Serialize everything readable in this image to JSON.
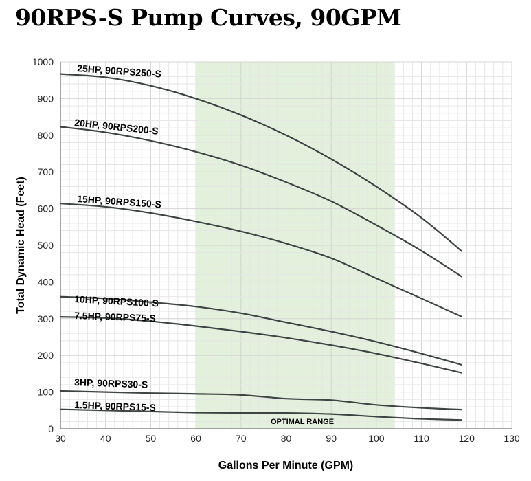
{
  "chart_data": {
    "type": "line",
    "title": "90RPS-S Pump Curves, 90GPM",
    "xlabel": "Gallons Per Minute (GPM)",
    "ylabel": "Total Dynamic Head (Feet)",
    "xlim": [
      30,
      130
    ],
    "ylim": [
      0,
      1000
    ],
    "xticks": [
      30,
      40,
      50,
      60,
      70,
      80,
      90,
      100,
      110,
      120,
      130
    ],
    "yticks": [
      0,
      100,
      200,
      300,
      400,
      500,
      600,
      700,
      800,
      900,
      1000
    ],
    "grid": true,
    "shaded_region": {
      "label": "OPTIMAL RANGE",
      "x": [
        60,
        104
      ],
      "color": "#e3f0dc"
    },
    "line_color": "#3d4443",
    "x": [
      30,
      40,
      50,
      60,
      70,
      80,
      90,
      100,
      110,
      119
    ],
    "series": [
      {
        "name": "25HP, 90RPS250-S",
        "values": [
          967,
          958,
          935,
          900,
          855,
          800,
          735,
          660,
          575,
          483
        ]
      },
      {
        "name": "20HP,  90RPS200-S",
        "values": [
          823,
          808,
          785,
          755,
          718,
          672,
          620,
          555,
          485,
          414
        ]
      },
      {
        "name": "15HP,  90RPS150-S",
        "values": [
          614,
          605,
          588,
          565,
          538,
          505,
          465,
          410,
          355,
          305
        ]
      },
      {
        "name": "10HP, 90RPS100-S",
        "values": [
          360,
          355,
          345,
          333,
          315,
          290,
          265,
          237,
          205,
          174
        ]
      },
      {
        "name": "7.5HP, 90RPS75-S",
        "values": [
          305,
          302,
          293,
          280,
          265,
          248,
          228,
          205,
          178,
          152
        ]
      },
      {
        "name": "3HP, 90RPS30-S",
        "values": [
          103,
          100,
          97,
          95,
          92,
          82,
          78,
          65,
          57,
          52
        ]
      },
      {
        "name": "1.5HP, 90RPS15-S",
        "values": [
          53,
          50,
          47,
          44,
          43,
          43,
          40,
          33,
          27,
          24
        ]
      }
    ]
  }
}
